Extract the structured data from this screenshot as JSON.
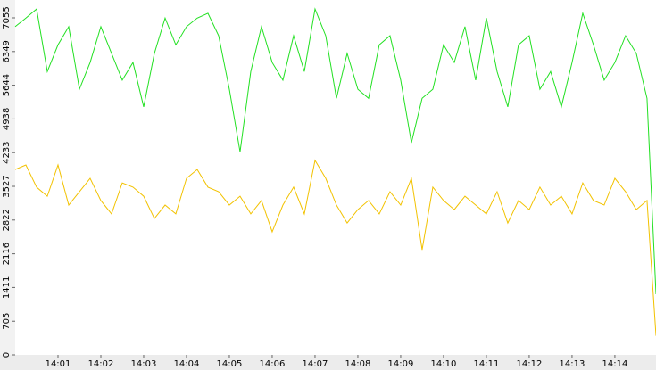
{
  "chart_data": {
    "type": "line",
    "x": [
      840,
      840.25,
      840.5,
      840.75,
      841,
      841.25,
      841.5,
      841.75,
      842,
      842.25,
      842.5,
      842.75,
      843,
      843.25,
      843.5,
      843.75,
      844,
      844.25,
      844.5,
      844.75,
      845,
      845.25,
      845.5,
      845.75,
      846,
      846.25,
      846.5,
      846.75,
      847,
      847.25,
      847.5,
      847.75,
      848,
      848.25,
      848.5,
      848.75,
      849,
      849.25,
      849.5,
      849.75,
      850,
      850.25,
      850.5,
      850.75,
      851,
      851.25,
      851.5,
      851.75,
      852,
      852.25,
      852.5,
      852.75,
      853,
      853.25,
      853.5,
      853.75,
      854,
      854.25,
      854.5,
      854.75,
      854.96
    ],
    "series": [
      {
        "color": "#22e022",
        "values": [
          6870,
          7050,
          7240,
          5930,
          6490,
          6870,
          5560,
          6120,
          6870,
          6310,
          5750,
          6120,
          5190,
          6310,
          7050,
          6490,
          6870,
          7050,
          7150,
          6680,
          5560,
          4250,
          5930,
          6870,
          6120,
          5750,
          6680,
          5930,
          7240,
          6680,
          5370,
          6310,
          5560,
          5370,
          6490,
          6680,
          5750,
          4440,
          5370,
          5560,
          6490,
          6120,
          6870,
          5750,
          7050,
          5930,
          5190,
          6490,
          6680,
          5560,
          5930,
          5190,
          6120,
          7150,
          6490,
          5750,
          6120,
          6680,
          6310,
          5370,
          1270
        ]
      },
      {
        "color": "#f2c200",
        "values": [
          3880,
          3975,
          3510,
          3320,
          3975,
          3135,
          3415,
          3695,
          3230,
          2950,
          3600,
          3510,
          3320,
          2855,
          3135,
          2950,
          3695,
          3880,
          3510,
          3415,
          3135,
          3320,
          2950,
          3230,
          2575,
          3135,
          3510,
          2950,
          4070,
          3695,
          3135,
          2760,
          3040,
          3230,
          2950,
          3415,
          3135,
          3695,
          2200,
          3510,
          3230,
          3040,
          3320,
          3135,
          2950,
          3415,
          2760,
          3230,
          3040,
          3510,
          3135,
          3320,
          2950,
          3600,
          3230,
          3135,
          3695,
          3415,
          3040,
          3230,
          400
        ]
      }
    ],
    "xlim": [
      840,
      854.96
    ],
    "ylim": [
      0,
      7428
    ],
    "xticks": [
      {
        "value": 841,
        "label": "14:01"
      },
      {
        "value": 842,
        "label": "14:02"
      },
      {
        "value": 843,
        "label": "14:03"
      },
      {
        "value": 844,
        "label": "14:04"
      },
      {
        "value": 845,
        "label": "14:05"
      },
      {
        "value": 846,
        "label": "14:06"
      },
      {
        "value": 847,
        "label": "14:07"
      },
      {
        "value": 848,
        "label": "14:08"
      },
      {
        "value": 849,
        "label": "14:09"
      },
      {
        "value": 850,
        "label": "14:10"
      },
      {
        "value": 851,
        "label": "14:11"
      },
      {
        "value": 852,
        "label": "14:12"
      },
      {
        "value": 853,
        "label": "14:13"
      },
      {
        "value": 854,
        "label": "14:14"
      }
    ],
    "yticks": [
      0,
      705,
      1411,
      2116,
      2822,
      3527,
      4233,
      4938,
      5644,
      6349,
      7055
    ]
  }
}
